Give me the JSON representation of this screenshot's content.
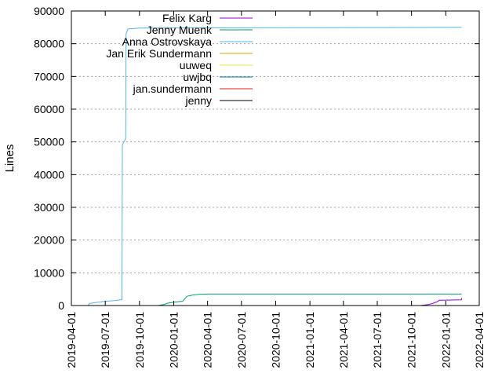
{
  "chart_data": {
    "type": "line",
    "xlabel": "",
    "ylabel": "Lines",
    "xlim": [
      "2019-04-01",
      "2022-04-01"
    ],
    "ylim": [
      0,
      90000
    ],
    "grid": "horizontal dotted",
    "legend_position": "top-left",
    "y_ticks": [
      {
        "value": 0,
        "label": "0"
      },
      {
        "value": 10000,
        "label": "10000"
      },
      {
        "value": 20000,
        "label": "20000"
      },
      {
        "value": 30000,
        "label": "30000"
      },
      {
        "value": 40000,
        "label": "40000"
      },
      {
        "value": 50000,
        "label": "50000"
      },
      {
        "value": 60000,
        "label": "60000"
      },
      {
        "value": 70000,
        "label": "70000"
      },
      {
        "value": 80000,
        "label": "80000"
      },
      {
        "value": 90000,
        "label": "90000"
      }
    ],
    "x_ticks": [
      {
        "value": "2019-04-01",
        "label": "2019-04-01"
      },
      {
        "value": "2019-07-01",
        "label": "2019-07-01"
      },
      {
        "value": "2019-10-01",
        "label": "2019-10-01"
      },
      {
        "value": "2020-01-01",
        "label": "2020-01-01"
      },
      {
        "value": "2020-04-01",
        "label": "2020-04-01"
      },
      {
        "value": "2020-07-01",
        "label": "2020-07-01"
      },
      {
        "value": "2020-10-01",
        "label": "2020-10-01"
      },
      {
        "value": "2021-01-01",
        "label": "2021-01-01"
      },
      {
        "value": "2021-04-01",
        "label": "2021-04-01"
      },
      {
        "value": "2021-07-01",
        "label": "2021-07-01"
      },
      {
        "value": "2021-10-01",
        "label": "2021-10-01"
      },
      {
        "value": "2022-01-01",
        "label": "2022-01-01"
      },
      {
        "value": "2022-04-01",
        "label": "2022-04-01"
      }
    ],
    "series": [
      {
        "name": "Felix Karg",
        "color": "#9400d3",
        "points": [
          [
            "2021-10-25",
            0
          ],
          [
            "2021-11-15",
            300
          ],
          [
            "2021-11-28",
            700
          ],
          [
            "2021-12-08",
            1100
          ],
          [
            "2021-12-15",
            1600
          ],
          [
            "2022-01-05",
            1650
          ],
          [
            "2022-01-25",
            1700
          ],
          [
            "2022-02-12",
            1750
          ],
          [
            "2022-02-13",
            2300
          ]
        ]
      },
      {
        "name": "Jenny Muenk",
        "color": "#009e73",
        "points": [
          [
            "2019-11-20",
            0
          ],
          [
            "2019-12-05",
            300
          ],
          [
            "2019-12-15",
            700
          ],
          [
            "2020-01-01",
            1000
          ],
          [
            "2020-01-15",
            1200
          ],
          [
            "2020-01-25",
            1300
          ],
          [
            "2020-02-05",
            2800
          ],
          [
            "2020-02-20",
            3200
          ],
          [
            "2020-03-10",
            3400
          ],
          [
            "2020-04-01",
            3500
          ],
          [
            "2022-02-13",
            3500
          ]
        ]
      },
      {
        "name": "Anna Ostrovskaya",
        "color": "#56b4e9",
        "points": [
          [
            "2019-05-15",
            0
          ],
          [
            "2019-05-20",
            600
          ],
          [
            "2019-06-10",
            1000
          ],
          [
            "2019-07-01",
            1300
          ],
          [
            "2019-07-25",
            1500
          ],
          [
            "2019-08-15",
            1800
          ],
          [
            "2019-08-16",
            49000
          ],
          [
            "2019-08-20",
            50000
          ],
          [
            "2019-08-25",
            51000
          ],
          [
            "2019-08-26",
            83000
          ],
          [
            "2019-08-31",
            84500
          ],
          [
            "2019-10-01",
            84800
          ],
          [
            "2022-02-13",
            85000
          ]
        ]
      },
      {
        "name": "Jan Erik Sundermann",
        "color": "#e69f00",
        "points": []
      },
      {
        "name": "uuweq",
        "color": "#f0e442",
        "points": []
      },
      {
        "name": "uwjbq",
        "color": "#0072b2",
        "points": []
      },
      {
        "name": "jan.sundermann",
        "color": "#e51e10",
        "points": []
      },
      {
        "name": "jenny",
        "color": "#000000",
        "points": []
      }
    ]
  }
}
